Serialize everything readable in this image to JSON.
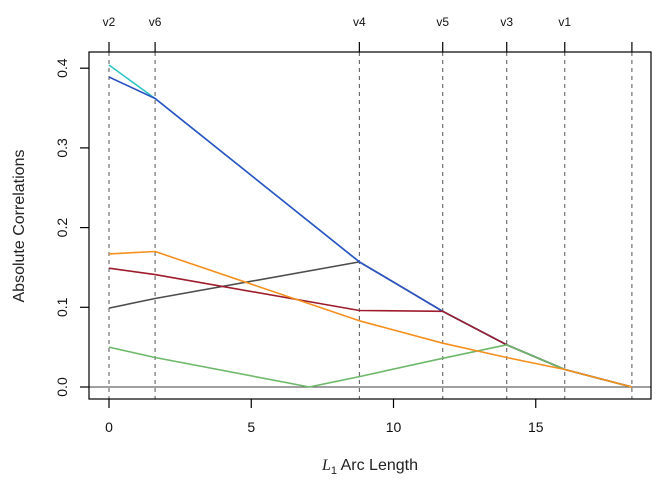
{
  "chart_data": {
    "type": "line",
    "title": "",
    "xlabel_math": "L",
    "xlabel_sub": "1",
    "xlabel_rest": " Arc Length",
    "ylabel": "Absolute Correlations",
    "xlim": [
      0,
      18.6
    ],
    "ylim": [
      -0.02,
      0.42
    ],
    "x_ticks": [
      0,
      5,
      10,
      15
    ],
    "x_tick_labels": [
      "0",
      "5",
      "10",
      "15"
    ],
    "y_ticks": [
      0.0,
      0.1,
      0.2,
      0.3,
      0.4
    ],
    "y_tick_labels": [
      "0.0",
      "0.1",
      "0.2",
      "0.3",
      "0.4"
    ],
    "knots": [
      0,
      1.62,
      8.8,
      11.73,
      13.98,
      16.02,
      18.38
    ],
    "knot_labels": [
      "v2",
      "v6",
      "v4",
      "v5",
      "v3",
      "v1",
      ""
    ],
    "grid": false,
    "series": [
      {
        "name": "cyan",
        "color": "#2ec4c4",
        "x": [
          0,
          1.62,
          8.8,
          11.73,
          13.98,
          16.02,
          18.38
        ],
        "y": [
          0.404,
          0.362,
          0.157,
          0.095,
          0.053,
          0.022,
          0
        ]
      },
      {
        "name": "gray",
        "color": "#4d4d4d",
        "x": [
          0,
          1.62,
          8.8,
          11.73,
          13.98,
          16.02,
          18.38
        ],
        "y": [
          0.099,
          0.111,
          0.157,
          0.095,
          0.053,
          0.022,
          0
        ]
      },
      {
        "name": "blue",
        "color": "#2d52c4",
        "x": [
          0,
          1.62,
          8.8,
          11.73,
          13.98,
          16.02,
          18.38
        ],
        "y": [
          0.389,
          0.362,
          0.157,
          0.095,
          0.053,
          0.022,
          0
        ]
      },
      {
        "name": "darkred",
        "color": "#9e1c2c",
        "x": [
          0,
          1.62,
          8.8,
          11.73,
          13.98,
          16.02,
          18.38
        ],
        "y": [
          0.149,
          0.141,
          0.096,
          0.095,
          0.053,
          0.022,
          0
        ]
      },
      {
        "name": "green",
        "color": "#6db86a",
        "x": [
          0,
          1.62,
          7.04,
          8.8,
          11.73,
          13.98,
          16.02,
          18.38
        ],
        "y": [
          0.05,
          0.037,
          0,
          0.013,
          0.036,
          0.053,
          0.022,
          0
        ]
      },
      {
        "name": "orange",
        "color": "#f5901e",
        "x": [
          0,
          1.62,
          8.8,
          11.73,
          13.98,
          16.02,
          18.38
        ],
        "y": [
          0.167,
          0.17,
          0.083,
          0.055,
          0.037,
          0.022,
          0
        ]
      }
    ]
  }
}
